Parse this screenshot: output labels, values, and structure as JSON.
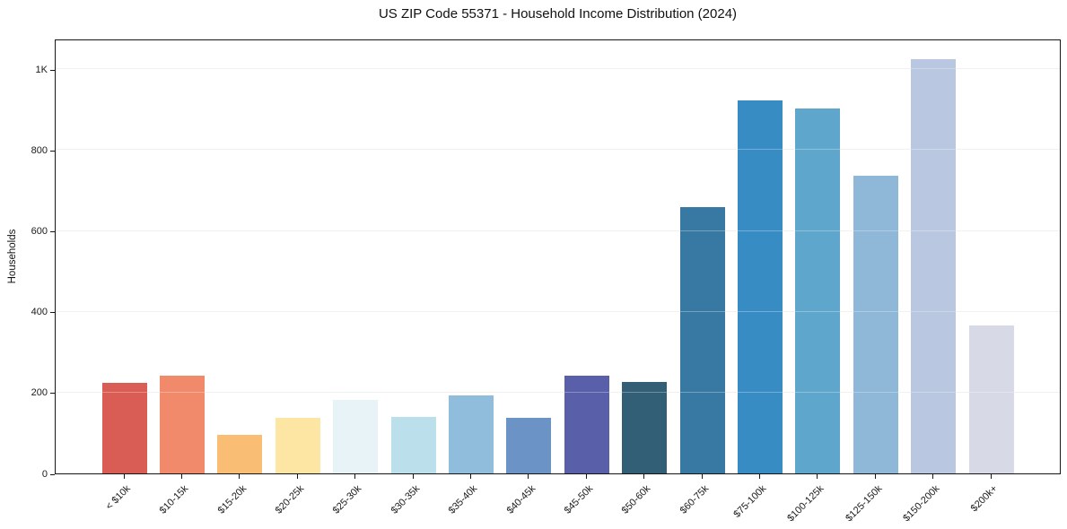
{
  "chart_data": {
    "type": "bar",
    "title": "US ZIP Code 55371 - Household Income Distribution (2024)",
    "xlabel": "",
    "ylabel": "Households",
    "categories": [
      "< $10k",
      "$10-15k",
      "$15-20k",
      "$20-25k",
      "$25-30k",
      "$30-35k",
      "$35-40k",
      "$40-45k",
      "$45-50k",
      "$50-60k",
      "$60-75k",
      "$75-100k",
      "$100-125k",
      "$125-150k",
      "$150-200k",
      "$200k+"
    ],
    "values": [
      224,
      242,
      95,
      137,
      183,
      139,
      193,
      137,
      242,
      227,
      658,
      922,
      903,
      737,
      1025,
      367
    ],
    "bar_colors": [
      "#d95d55",
      "#f18a6a",
      "#fabd74",
      "#fde5a4",
      "#e7f3f7",
      "#bbdfeb",
      "#90bddc",
      "#6b93c6",
      "#5a5fa9",
      "#335f76",
      "#3779a3",
      "#388cc4",
      "#5fa6cc",
      "#8fb7d8",
      "#b9c8e0",
      "#d7d9e6"
    ],
    "ylim": [
      0,
      1076
    ],
    "yticks": [
      {
        "value": 0,
        "label": "0"
      },
      {
        "value": 200,
        "label": "200"
      },
      {
        "value": 400,
        "label": "400"
      },
      {
        "value": 600,
        "label": "600"
      },
      {
        "value": 800,
        "label": "800"
      },
      {
        "value": 1000,
        "label": "1K"
      }
    ],
    "grid": "horizontal",
    "gridline_color": "#ebebeb",
    "spine_color": "#151515",
    "background": "#ffffff",
    "legend": "none"
  }
}
